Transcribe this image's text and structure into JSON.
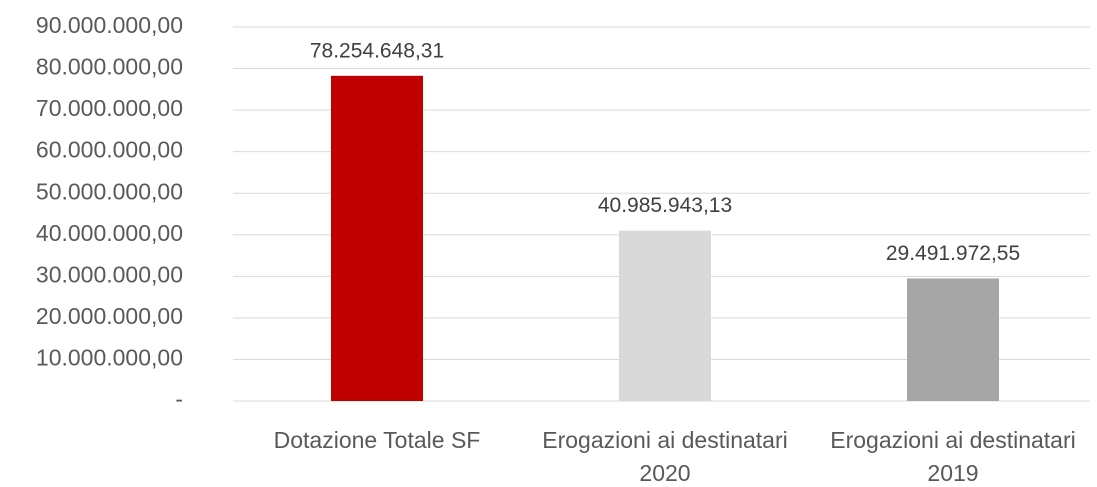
{
  "chart_data": {
    "type": "bar",
    "categories": [
      "Dotazione Totale SF",
      "Erogazioni ai destinatari 2020",
      "Erogazioni ai destinatari 2019"
    ],
    "values": [
      78254648.31,
      40985943.13,
      29491972.55
    ],
    "value_labels": [
      "78.254.648,31",
      "40.985.943,13",
      "29.491.972,55"
    ],
    "colors": [
      "#c00000",
      "#d9d9d9",
      "#a6a6a6"
    ],
    "ylim": [
      0,
      90000000
    ],
    "yticks": [
      {
        "value": 0,
        "label": "-"
      },
      {
        "value": 10000000,
        "label": "10.000.000,00"
      },
      {
        "value": 20000000,
        "label": "20.000.000,00"
      },
      {
        "value": 30000000,
        "label": "30.000.000,00"
      },
      {
        "value": 40000000,
        "label": "40.000.000,00"
      },
      {
        "value": 50000000,
        "label": "50.000.000,00"
      },
      {
        "value": 60000000,
        "label": "60.000.000,00"
      },
      {
        "value": 70000000,
        "label": "70.000.000,00"
      },
      {
        "value": 80000000,
        "label": "80.000.000,00"
      },
      {
        "value": 90000000,
        "label": "90.000.000,00"
      }
    ],
    "grid": true
  }
}
